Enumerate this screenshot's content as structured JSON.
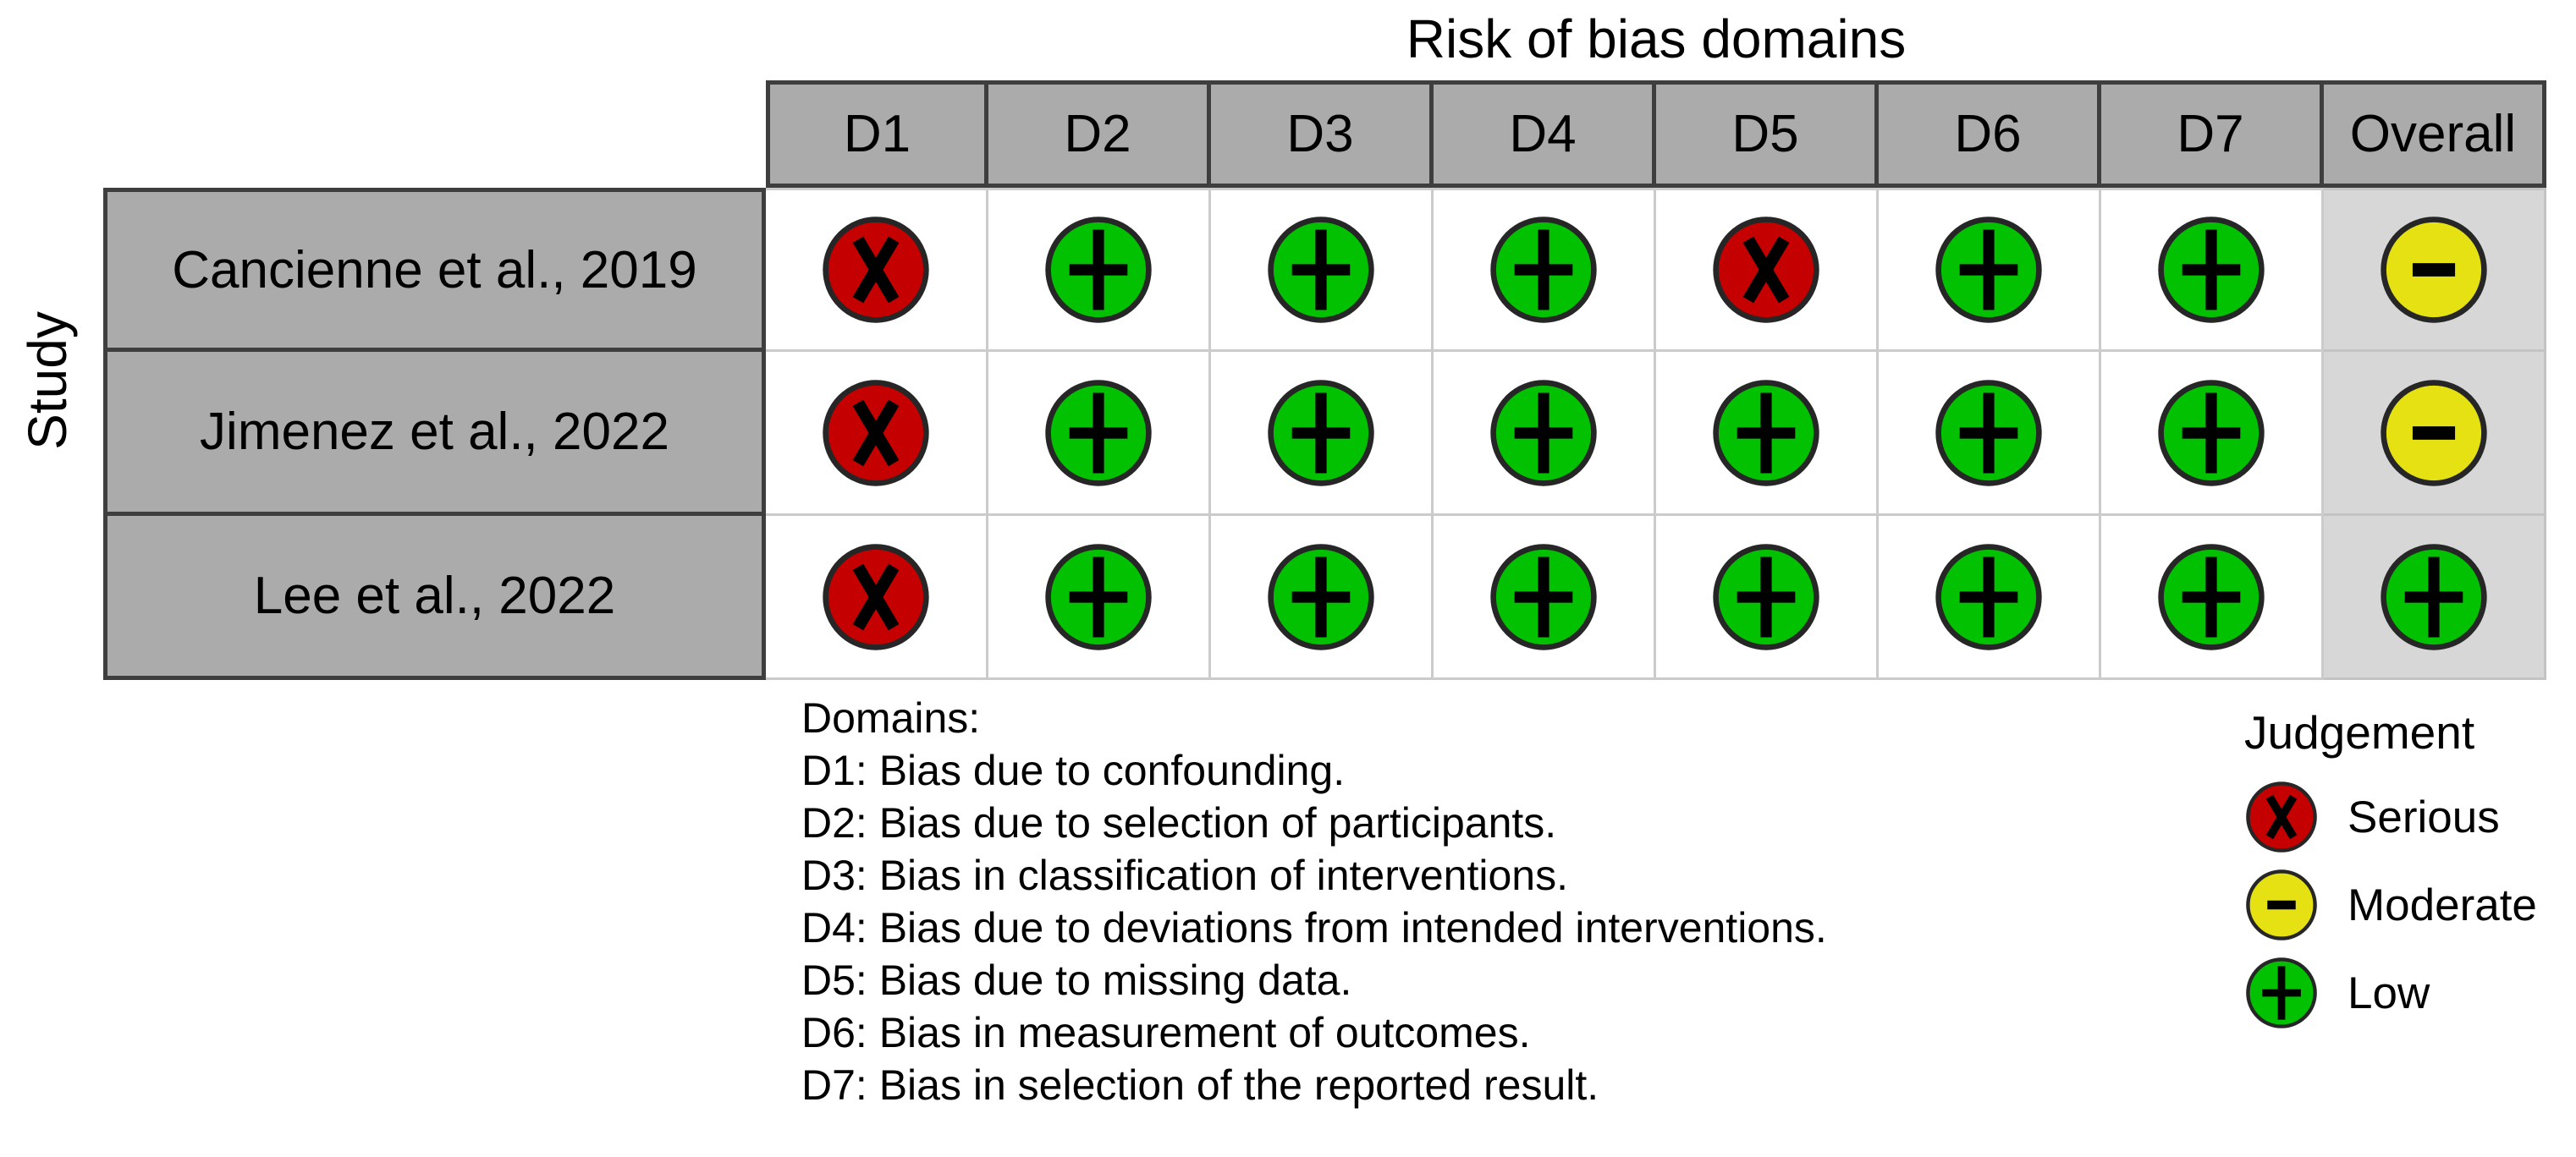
{
  "figure_title": "Risk of bias domains",
  "axis_label": "Study",
  "chart_data": {
    "type": "heatmap",
    "title": "Risk of bias domains",
    "columns": [
      "D1",
      "D2",
      "D3",
      "D4",
      "D5",
      "D6",
      "D7",
      "Overall"
    ],
    "rows": [
      "Cancienne et al., 2019",
      "Jimenez et al., 2022",
      "Lee et al., 2022"
    ],
    "values": [
      [
        "serious",
        "low",
        "low",
        "low",
        "serious",
        "low",
        "low",
        "moderate"
      ],
      [
        "serious",
        "low",
        "low",
        "low",
        "low",
        "low",
        "low",
        "moderate"
      ],
      [
        "serious",
        "low",
        "low",
        "low",
        "low",
        "low",
        "low",
        "low"
      ]
    ],
    "legend_position": "bottom-right"
  },
  "judgements": {
    "serious": {
      "label": "Serious",
      "symbol": "x",
      "color": "#C40000"
    },
    "moderate": {
      "label": "Moderate",
      "symbol": "-",
      "color": "#E5E112"
    },
    "low": {
      "label": "Low",
      "symbol": "+",
      "color": "#02C100"
    }
  },
  "notes": {
    "heading": "Domains:",
    "items": [
      "D1: Bias due to confounding.",
      "D2: Bias due to selection of participants.",
      "D3: Bias in classification of interventions.",
      "D4: Bias due to deviations from intended interventions.",
      "D5: Bias due to missing data.",
      "D6: Bias in measurement of outcomes.",
      "D7: Bias in selection of the reported result."
    ]
  },
  "legend": {
    "title": "Judgement",
    "order": [
      "serious",
      "moderate",
      "low"
    ]
  },
  "colors": {
    "background": "#FFFFFF",
    "header_bg": "#ABABAB",
    "header_border": "#3E3E3E",
    "cell_border": "#CBCBCB",
    "overall_bg": "#D7D7D7",
    "circle_outline": "#262626",
    "text": "#000000"
  }
}
